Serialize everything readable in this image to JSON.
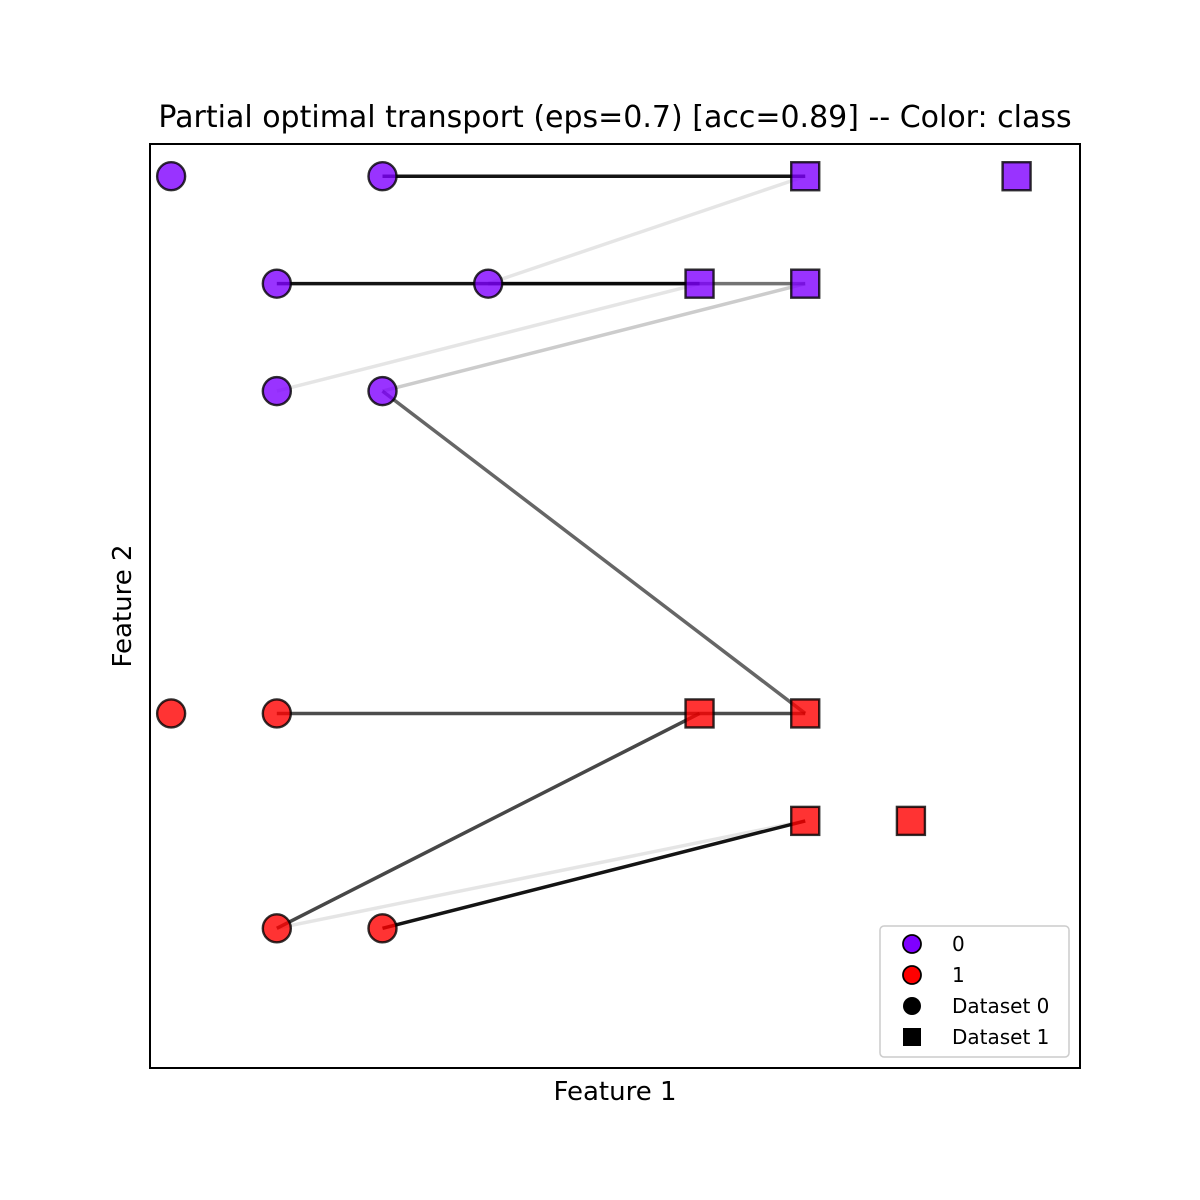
{
  "chart_data": {
    "type": "scatter",
    "title": "Partial optimal transport (eps=0.7) [acc=0.89] -- Color: class",
    "xlabel": "Feature 1",
    "ylabel": "Feature 2",
    "xlim": [
      -0.2,
      8.6
    ],
    "ylim": [
      -1.3,
      7.3
    ],
    "grid": false,
    "ticks_visible": false,
    "legend_position": "lower-right",
    "class_colors": {
      "0": "#7f00ff",
      "1": "#ff0000"
    },
    "legend": [
      {
        "label": "0",
        "marker": "circle",
        "color": "#7f00ff"
      },
      {
        "label": "1",
        "marker": "circle",
        "color": "#ff0000"
      },
      {
        "label": "Dataset 0",
        "marker": "circle",
        "color": "#000000"
      },
      {
        "label": "Dataset 1",
        "marker": "square",
        "color": "#000000"
      }
    ],
    "series": [
      {
        "name": "Dataset 0",
        "marker": "circle",
        "points": [
          {
            "x": 0,
            "y": 7,
            "class": 0
          },
          {
            "x": 2,
            "y": 7,
            "class": 0
          },
          {
            "x": 1,
            "y": 6,
            "class": 0
          },
          {
            "x": 3,
            "y": 6,
            "class": 0
          },
          {
            "x": 1,
            "y": 5,
            "class": 0
          },
          {
            "x": 2,
            "y": 5,
            "class": 0
          },
          {
            "x": 0,
            "y": 2,
            "class": 1
          },
          {
            "x": 1,
            "y": 2,
            "class": 1
          },
          {
            "x": 1,
            "y": 0,
            "class": 1
          },
          {
            "x": 2,
            "y": 0,
            "class": 1
          }
        ]
      },
      {
        "name": "Dataset 1",
        "marker": "square",
        "points": [
          {
            "x": 6,
            "y": 7,
            "class": 0
          },
          {
            "x": 8,
            "y": 7,
            "class": 0
          },
          {
            "x": 5,
            "y": 6,
            "class": 0
          },
          {
            "x": 6,
            "y": 6,
            "class": 0
          },
          {
            "x": 5,
            "y": 2,
            "class": 1
          },
          {
            "x": 6,
            "y": 2,
            "class": 1
          },
          {
            "x": 6,
            "y": 1,
            "class": 1
          },
          {
            "x": 7,
            "y": 1,
            "class": 1
          }
        ]
      }
    ],
    "transport_links": [
      {
        "from": [
          2,
          7
        ],
        "to": [
          6,
          7
        ],
        "strength": 0.92
      },
      {
        "from": [
          3,
          6
        ],
        "to": [
          6,
          7
        ],
        "strength": 0.1
      },
      {
        "from": [
          1,
          6
        ],
        "to": [
          5,
          6
        ],
        "strength": 0.92
      },
      {
        "from": [
          3,
          6
        ],
        "to": [
          6,
          6
        ],
        "strength": 0.55
      },
      {
        "from": [
          1,
          5
        ],
        "to": [
          5,
          6
        ],
        "strength": 0.1
      },
      {
        "from": [
          2,
          5
        ],
        "to": [
          6,
          6
        ],
        "strength": 0.2
      },
      {
        "from": [
          2,
          5
        ],
        "to": [
          6,
          2
        ],
        "strength": 0.6
      },
      {
        "from": [
          1,
          2
        ],
        "to": [
          6,
          2
        ],
        "strength": 0.7
      },
      {
        "from": [
          1,
          0
        ],
        "to": [
          5,
          2
        ],
        "strength": 0.72
      },
      {
        "from": [
          1,
          0
        ],
        "to": [
          6,
          1
        ],
        "strength": 0.1
      },
      {
        "from": [
          2,
          0
        ],
        "to": [
          6,
          1
        ],
        "strength": 0.92
      }
    ]
  }
}
